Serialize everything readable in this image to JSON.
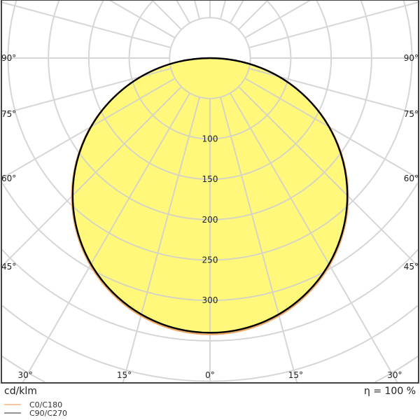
{
  "chart_data": {
    "type": "polar",
    "unit_label": "cd/klm",
    "efficiency_label": "η = 100 %",
    "radial_ticks": [
      100,
      150,
      200,
      250,
      300
    ],
    "radial_grid_step": 50,
    "angle_grid_step_deg": 15,
    "angle_labels": [
      "90°",
      "75°",
      "60°",
      "45°",
      "30°",
      "15°",
      "0°"
    ],
    "angle_label_values": [
      90,
      75,
      60,
      45,
      30,
      15,
      0
    ],
    "grid": true,
    "legend_placement": "bottom-left",
    "series": [
      {
        "name": "C0/C180",
        "color": "#f0a866",
        "distribution": "cosine",
        "peak_intensity_cd_klm": 342
      },
      {
        "name": "C90/C270",
        "color": "#000000",
        "distribution": "cosine",
        "peak_intensity_cd_klm": 340
      }
    ],
    "fill_color": "#fff87a",
    "grid_color": "#cfcfcf"
  }
}
